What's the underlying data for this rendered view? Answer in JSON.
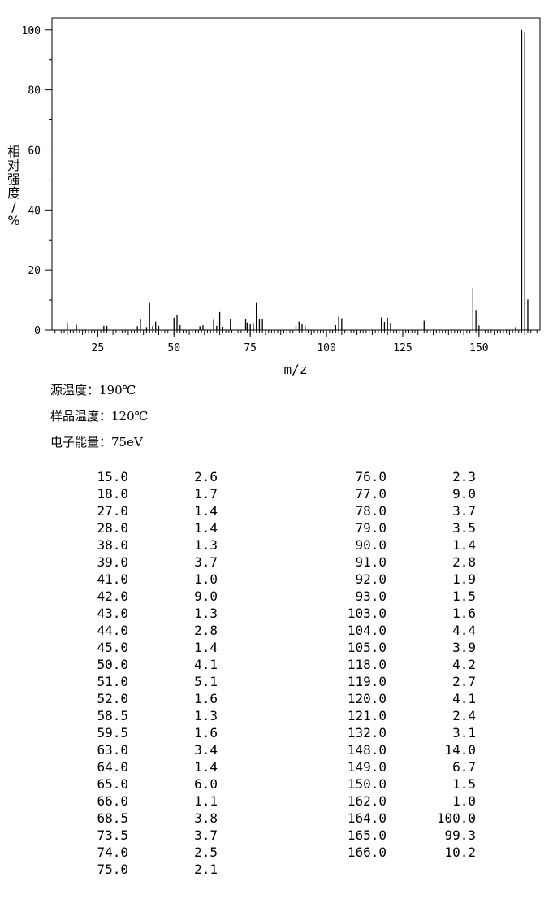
{
  "chart_data": {
    "type": "bar",
    "title": "",
    "xlabel": "m/z",
    "ylabel": "相对强度/%",
    "xlim": [
      10,
      170
    ],
    "ylim": [
      0,
      104
    ],
    "xticks": [
      25,
      50,
      75,
      100,
      125,
      150
    ],
    "yticks": [
      0,
      20,
      40,
      60,
      80,
      100
    ],
    "grid": false,
    "x": [
      15.0,
      18.0,
      27.0,
      28.0,
      38.0,
      39.0,
      41.0,
      42.0,
      43.0,
      44.0,
      45.0,
      50.0,
      51.0,
      52.0,
      58.5,
      59.5,
      63.0,
      64.0,
      65.0,
      66.0,
      68.5,
      73.5,
      74.0,
      75.0,
      76.0,
      77.0,
      78.0,
      79.0,
      90.0,
      91.0,
      92.0,
      93.0,
      103.0,
      104.0,
      105.0,
      118.0,
      119.0,
      120.0,
      121.0,
      132.0,
      148.0,
      149.0,
      150.0,
      162.0,
      164.0,
      165.0,
      166.0
    ],
    "values": [
      2.6,
      1.7,
      1.4,
      1.4,
      1.3,
      3.7,
      1.0,
      9.0,
      1.3,
      2.8,
      1.4,
      4.1,
      5.1,
      1.6,
      1.3,
      1.6,
      3.4,
      1.4,
      6.0,
      1.1,
      3.8,
      3.7,
      2.5,
      2.1,
      2.3,
      9.0,
      3.7,
      3.5,
      1.4,
      2.8,
      1.9,
      1.5,
      1.6,
      4.4,
      3.9,
      4.2,
      2.7,
      4.1,
      2.4,
      3.1,
      14.0,
      6.7,
      1.5,
      1.0,
      100.0,
      99.3,
      10.2
    ]
  },
  "conditions": {
    "source_temp": "源温度：190℃",
    "sample_temp": "样品温度：120℃",
    "electron_energy": "电子能量：75eV"
  },
  "table": {
    "col1": [
      "15.0",
      "18.0",
      "27.0",
      "28.0",
      "38.0",
      "39.0",
      "41.0",
      "42.0",
      "43.0",
      "44.0",
      "45.0",
      "50.0",
      "51.0",
      "52.0",
      "58.5",
      "59.5",
      "63.0",
      "64.0",
      "65.0",
      "66.0",
      "68.5",
      "73.5",
      "74.0",
      "75.0"
    ],
    "col2": [
      "2.6",
      "1.7",
      "1.4",
      "1.4",
      "1.3",
      "3.7",
      "1.0",
      "9.0",
      "1.3",
      "2.8",
      "1.4",
      "4.1",
      "5.1",
      "1.6",
      "1.3",
      "1.6",
      "3.4",
      "1.4",
      "6.0",
      "1.1",
      "3.8",
      "3.7",
      "2.5",
      "2.1"
    ],
    "col3": [
      "76.0",
      "77.0",
      "78.0",
      "79.0",
      "90.0",
      "91.0",
      "92.0",
      "93.0",
      "103.0",
      "104.0",
      "105.0",
      "118.0",
      "119.0",
      "120.0",
      "121.0",
      "132.0",
      "148.0",
      "149.0",
      "150.0",
      "162.0",
      "164.0",
      "165.0",
      "166.0"
    ],
    "col4": [
      "2.3",
      "9.0",
      "3.7",
      "3.5",
      "1.4",
      "2.8",
      "1.9",
      "1.5",
      "1.6",
      "4.4",
      "3.9",
      "4.2",
      "2.7",
      "4.1",
      "2.4",
      "3.1",
      "14.0",
      "6.7",
      "1.5",
      "1.0",
      "100.0",
      "99.3",
      "10.2"
    ]
  }
}
